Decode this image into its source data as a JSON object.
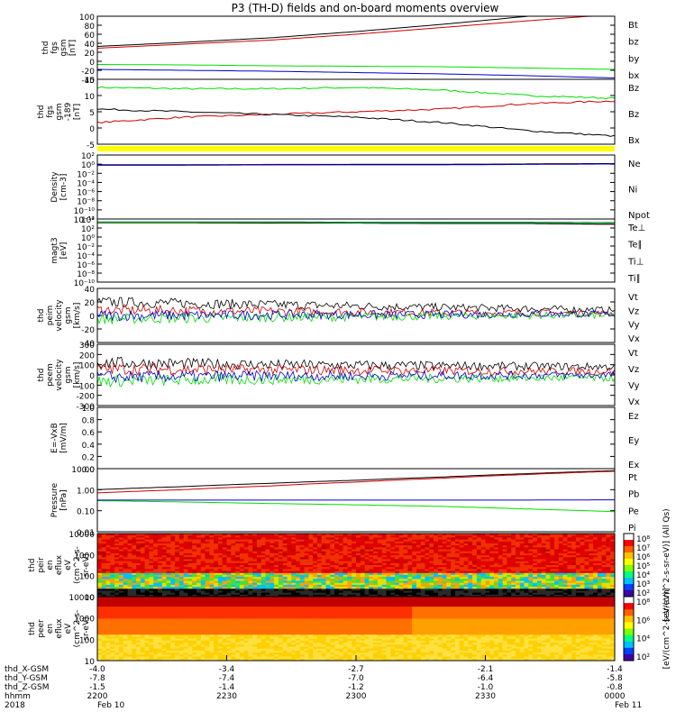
{
  "title": "P3 (TH-D) fields and on-board moments overview",
  "chart_data": [
    {
      "name": "fgs",
      "type": "line",
      "ylabel": [
        "thd",
        "fgs",
        "gsm",
        "[nT]"
      ],
      "yticks": [
        "100",
        "80",
        "60",
        "40",
        "20",
        "0",
        "-20",
        "-40"
      ],
      "ylim": [
        -40,
        100
      ],
      "series": [
        {
          "name": "Bt",
          "color": "#000000",
          "values": [
            33,
            42,
            52,
            66,
            82,
            100,
            118
          ]
        },
        {
          "name": "bz",
          "color": "#cc0000",
          "values": [
            29,
            38,
            47,
            60,
            75,
            90,
            104
          ]
        },
        {
          "name": "by",
          "color": "#00dd00",
          "values": [
            -7,
            -8,
            -10,
            -11,
            -12,
            -15,
            -18
          ]
        },
        {
          "name": "bx",
          "color": "#0000cc",
          "values": [
            -18,
            -20,
            -22,
            -25,
            -28,
            -32,
            -37
          ]
        }
      ]
    },
    {
      "name": "fgs-189",
      "type": "line",
      "ylabel": [
        "thd",
        "fgs",
        "gsm",
        "-189",
        "[nT]"
      ],
      "yticks": [
        "15",
        "10",
        "5",
        "0",
        "-5"
      ],
      "ylim": [
        -8,
        16
      ],
      "series": [
        {
          "name": "Bz",
          "color": "#00dd00",
          "values": [
            13,
            12.5,
            12.5,
            13,
            12,
            10,
            9
          ]
        },
        {
          "name": "Bz",
          "color": "#cc0000",
          "values": [
            0,
            2,
            3,
            4,
            5,
            7,
            8
          ]
        },
        {
          "name": "Bx",
          "color": "#000000",
          "values": [
            5,
            4,
            3,
            2,
            0,
            -3,
            -5
          ]
        }
      ]
    },
    {
      "name": "density",
      "type": "line",
      "ylabel": [
        "Density",
        "[cm-3]"
      ],
      "yticks": [
        "10²",
        "10⁰",
        "10⁻²",
        "10⁻⁴",
        "10⁻⁶",
        "10⁻⁸",
        "10⁻¹⁰",
        "10⁻¹²"
      ],
      "ylim": [
        -12.5,
        2.5
      ],
      "series": [
        {
          "name": "Ne",
          "color": "#cc0000",
          "values": [
            0.2,
            0.2,
            0.3,
            0.3,
            0.3,
            0.4,
            0.5
          ]
        },
        {
          "name": "Ni",
          "color": "#000000",
          "values": [
            0.2,
            0.2,
            0.2,
            0.3,
            0.3,
            0.4,
            0.5
          ]
        },
        {
          "name": "Npot",
          "color": "#0000cc",
          "values": [
            0.1,
            0.1,
            0.2,
            0.2,
            0.2,
            0.3,
            0.4
          ]
        }
      ]
    },
    {
      "name": "temperature",
      "type": "line",
      "ylabel": [
        "magt3",
        "[eV]"
      ],
      "yticks": [
        "10⁴",
        "10²",
        "10⁰",
        "10⁻²",
        "10⁻⁴",
        "10⁻⁶",
        "10⁻⁸",
        "10⁻¹⁰"
      ],
      "ylim": [
        -11,
        4.5
      ],
      "series": [
        {
          "name": "Te⊥",
          "color": "#cc0000",
          "values": [
            3.6,
            3.6,
            3.5,
            3.5,
            3.4,
            3.4,
            3.2
          ]
        },
        {
          "name": "Te∥",
          "color": "#000000",
          "values": [
            3.6,
            3.6,
            3.5,
            3.5,
            3.4,
            3.4,
            3.2
          ]
        },
        {
          "name": "Ti⊥",
          "color": "#0000cc",
          "values": [
            3.8,
            3.8,
            3.8,
            3.7,
            3.7,
            3.7,
            3.6
          ]
        },
        {
          "name": "Ti∥",
          "color": "#00dd00",
          "values": [
            3.7,
            3.7,
            3.7,
            3.6,
            3.6,
            3.6,
            3.5
          ]
        }
      ]
    },
    {
      "name": "peim-velocity",
      "type": "line",
      "ylabel": [
        "thd",
        "peim",
        "velocity",
        "gsm",
        "[km/s]"
      ],
      "yticks": [
        "40",
        "20",
        "0",
        "-20",
        "-40"
      ],
      "ylim": [
        -40,
        40
      ],
      "series": [
        {
          "name": "Vt",
          "color": "#000000",
          "values": [
            20,
            18,
            16,
            14,
            12,
            10,
            8
          ]
        },
        {
          "name": "Vz",
          "color": "#cc0000",
          "values": [
            8,
            7,
            6,
            5,
            4,
            4,
            3
          ]
        },
        {
          "name": "Vy",
          "color": "#00dd00",
          "values": [
            -5,
            -4,
            -3,
            -2,
            -1,
            0,
            0
          ]
        },
        {
          "name": "Vx",
          "color": "#0000cc",
          "values": [
            0,
            0,
            1,
            1,
            1,
            2,
            2
          ]
        }
      ]
    },
    {
      "name": "peem-velocity",
      "type": "line",
      "ylabel": [
        "thd",
        "peem",
        "velocity",
        "gsm",
        "[km/s]"
      ],
      "yticks": [
        "300",
        "200",
        "100",
        "0",
        "-100",
        "-200",
        "-300"
      ],
      "ylim": [
        -300,
        300
      ],
      "series": [
        {
          "name": "Vt",
          "color": "#000000",
          "values": [
            120,
            110,
            100,
            95,
            90,
            85,
            80
          ]
        },
        {
          "name": "Vz",
          "color": "#cc0000",
          "values": [
            60,
            55,
            50,
            45,
            40,
            38,
            35
          ]
        },
        {
          "name": "Vy",
          "color": "#00dd00",
          "values": [
            -60,
            -50,
            -45,
            -40,
            -35,
            -30,
            -30
          ]
        },
        {
          "name": "Vx",
          "color": "#0000cc",
          "values": [
            -20,
            -15,
            -10,
            -10,
            -5,
            -5,
            0
          ]
        }
      ]
    },
    {
      "name": "efield",
      "type": "line",
      "ylabel": [
        "E=-VxB",
        "[mV/m]"
      ],
      "yticks": [
        "1.0",
        "0.8",
        "0.6",
        "0.4",
        "0.2",
        "0.0"
      ],
      "ylim": [
        0,
        1
      ],
      "series": [
        {
          "name": "Ez",
          "color": "#cc0000",
          "values": []
        },
        {
          "name": "Ey",
          "color": "#00dd00",
          "values": []
        },
        {
          "name": "Ex",
          "color": "#0000cc",
          "values": []
        }
      ]
    },
    {
      "name": "pressure",
      "type": "line",
      "log": true,
      "ylabel": [
        "Pressure",
        "[nPa]"
      ],
      "yticks": [
        "10.00",
        "1.00",
        "0.10",
        "0.01"
      ],
      "ylim": [
        0.01,
        10
      ],
      "series": [
        {
          "name": "Pt",
          "color": "#000000",
          "values": [
            1.0,
            1.4,
            2.0,
            2.8,
            4.0,
            5.8,
            8.0
          ]
        },
        {
          "name": "Pb",
          "color": "#cc0000",
          "values": [
            0.7,
            1.0,
            1.5,
            2.3,
            3.5,
            5.3,
            7.5
          ]
        },
        {
          "name": "Pe",
          "color": "#00dd00",
          "values": [
            0.3,
            0.26,
            0.22,
            0.19,
            0.16,
            0.12,
            0.09
          ]
        },
        {
          "name": "Pi",
          "color": "#0000cc",
          "values": [
            0.32,
            0.32,
            0.32,
            0.32,
            0.32,
            0.32,
            0.33
          ]
        }
      ]
    },
    {
      "name": "peir-spectrogram",
      "type": "heatmap",
      "ylabel": [
        "thd",
        "peir",
        "en",
        "eflux",
        "eV",
        "(cm^2-s-",
        "sr-eV)"
      ],
      "yticks": [
        "10000",
        "1000",
        "100",
        "10"
      ],
      "colorbar_ticks": [
        "10⁸",
        "10⁷",
        "10⁶",
        "10⁵",
        "10⁴",
        "10³",
        "10²"
      ],
      "colorbar_label": "[eV/(cm^2-s-sr-eV)] (All Qs)"
    },
    {
      "name": "peer-spectrogram",
      "type": "heatmap",
      "ylabel": [
        "thd",
        "peer",
        "en",
        "eflux",
        "eV",
        "(cm^2-s-",
        "sr-eV)"
      ],
      "yticks": [
        "10000",
        "1000",
        "100",
        "10"
      ],
      "colorbar_ticks": [
        "10⁸",
        "10⁶",
        "10⁴",
        "10²"
      ],
      "colorbar_label": "[eV/(cm^2-s-sr-eV)]"
    }
  ],
  "xaxis": {
    "row_labels": [
      "thd_X-GSM",
      "thd_Y-GSM",
      "thd_Z-GSM",
      "hhmm",
      "2018"
    ],
    "columns": [
      {
        "vals": [
          "-4.0",
          "-7.8",
          "-1.5",
          "2200",
          "Feb 10"
        ]
      },
      {
        "vals": [
          "-3.4",
          "-7.4",
          "-1.4",
          "2230",
          ""
        ]
      },
      {
        "vals": [
          "-2.7",
          "-7.0",
          "-1.2",
          "2300",
          ""
        ]
      },
      {
        "vals": [
          "-2.1",
          "-6.4",
          "-1.0",
          "2330",
          ""
        ]
      },
      {
        "vals": [
          "-1.4",
          "-5.8",
          "-0.8",
          "0000",
          "Feb 11"
        ]
      }
    ]
  },
  "colors": {
    "yellow_bar": "#ffff00",
    "black": "#000000",
    "red": "#cc0000",
    "green": "#00dd00",
    "blue": "#0000cc"
  }
}
